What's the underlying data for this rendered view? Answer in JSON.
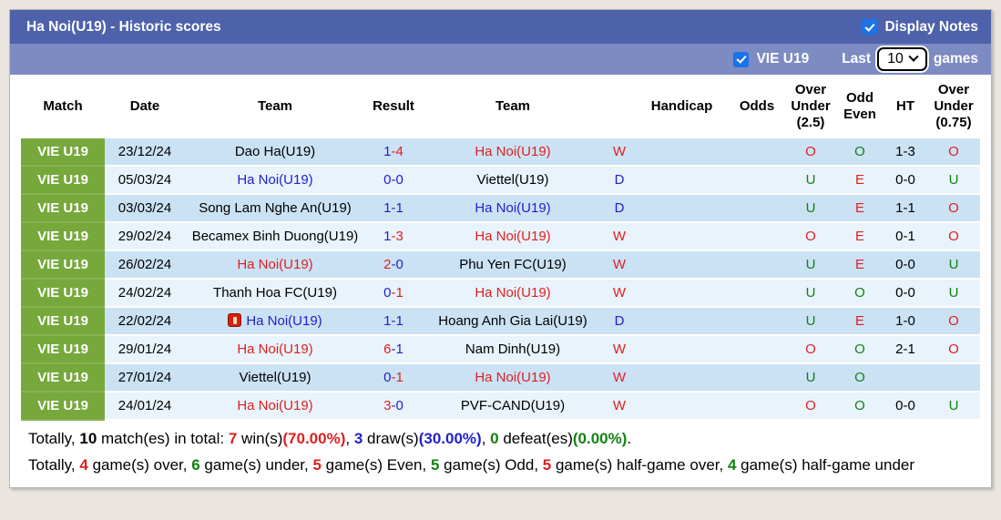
{
  "title_bar": {
    "title": "Ha Noi(U19) - Historic scores",
    "display_notes_label": "Display Notes",
    "display_notes_checked": true
  },
  "filter_bar": {
    "league_label": "VIE U19",
    "league_checked": true,
    "last_label": "Last",
    "games_count": "10",
    "games_label": "games"
  },
  "table": {
    "headers": {
      "match": "Match",
      "date": "Date",
      "team_home": "Team",
      "result": "Result",
      "team_away": "Team",
      "outcome": "",
      "handicap": "Handicap",
      "odds": "Odds",
      "over_under_25": "Over Under (2.5)",
      "odd_even": "Odd Even",
      "ht": "HT",
      "over_under_075": "Over Under (0.75)"
    },
    "rows": [
      {
        "match": "VIE U19",
        "date": "23/12/24",
        "note_icon": false,
        "home": {
          "name": "Dao Ha(U19)",
          "color": "black"
        },
        "result": {
          "home": "1",
          "dash": "-",
          "away": "4",
          "home_color": "blue",
          "away_color": "red"
        },
        "away": {
          "name": "Ha Noi(U19)",
          "color": "red"
        },
        "outcome": {
          "text": "W",
          "color": "red"
        },
        "handicap": "",
        "odds": "",
        "ou25": {
          "text": "O",
          "color": "red"
        },
        "oe": {
          "text": "O",
          "color": "green"
        },
        "ht": "1-3",
        "ou075": {
          "text": "O",
          "color": "red"
        }
      },
      {
        "match": "VIE U19",
        "date": "05/03/24",
        "note_icon": false,
        "home": {
          "name": "Ha Noi(U19)",
          "color": "blue"
        },
        "result": {
          "home": "0",
          "dash": "-",
          "away": "0",
          "home_color": "blue",
          "away_color": "blue"
        },
        "away": {
          "name": "Viettel(U19)",
          "color": "black"
        },
        "outcome": {
          "text": "D",
          "color": "blue"
        },
        "handicap": "",
        "odds": "",
        "ou25": {
          "text": "U",
          "color": "green"
        },
        "oe": {
          "text": "E",
          "color": "red"
        },
        "ht": "0-0",
        "ou075": {
          "text": "U",
          "color": "green"
        }
      },
      {
        "match": "VIE U19",
        "date": "03/03/24",
        "note_icon": false,
        "home": {
          "name": "Song Lam Nghe An(U19)",
          "color": "black"
        },
        "result": {
          "home": "1",
          "dash": "-",
          "away": "1",
          "home_color": "blue",
          "away_color": "blue"
        },
        "away": {
          "name": "Ha Noi(U19)",
          "color": "blue"
        },
        "outcome": {
          "text": "D",
          "color": "blue"
        },
        "handicap": "",
        "odds": "",
        "ou25": {
          "text": "U",
          "color": "green"
        },
        "oe": {
          "text": "E",
          "color": "red"
        },
        "ht": "1-1",
        "ou075": {
          "text": "O",
          "color": "red"
        }
      },
      {
        "match": "VIE U19",
        "date": "29/02/24",
        "note_icon": false,
        "home": {
          "name": "Becamex Binh Duong(U19)",
          "color": "black"
        },
        "result": {
          "home": "1",
          "dash": "-",
          "away": "3",
          "home_color": "blue",
          "away_color": "red"
        },
        "away": {
          "name": "Ha Noi(U19)",
          "color": "red"
        },
        "outcome": {
          "text": "W",
          "color": "red"
        },
        "handicap": "",
        "odds": "",
        "ou25": {
          "text": "O",
          "color": "red"
        },
        "oe": {
          "text": "E",
          "color": "red"
        },
        "ht": "0-1",
        "ou075": {
          "text": "O",
          "color": "red"
        }
      },
      {
        "match": "VIE U19",
        "date": "26/02/24",
        "note_icon": false,
        "home": {
          "name": "Ha Noi(U19)",
          "color": "red"
        },
        "result": {
          "home": "2",
          "dash": "-",
          "away": "0",
          "home_color": "red",
          "away_color": "blue"
        },
        "away": {
          "name": "Phu Yen FC(U19)",
          "color": "black"
        },
        "outcome": {
          "text": "W",
          "color": "red"
        },
        "handicap": "",
        "odds": "",
        "ou25": {
          "text": "U",
          "color": "green"
        },
        "oe": {
          "text": "E",
          "color": "red"
        },
        "ht": "0-0",
        "ou075": {
          "text": "U",
          "color": "green"
        }
      },
      {
        "match": "VIE U19",
        "date": "24/02/24",
        "note_icon": false,
        "home": {
          "name": "Thanh Hoa FC(U19)",
          "color": "black"
        },
        "result": {
          "home": "0",
          "dash": "-",
          "away": "1",
          "home_color": "blue",
          "away_color": "red"
        },
        "away": {
          "name": "Ha Noi(U19)",
          "color": "red"
        },
        "outcome": {
          "text": "W",
          "color": "red"
        },
        "handicap": "",
        "odds": "",
        "ou25": {
          "text": "U",
          "color": "green"
        },
        "oe": {
          "text": "O",
          "color": "green"
        },
        "ht": "0-0",
        "ou075": {
          "text": "U",
          "color": "green"
        }
      },
      {
        "match": "VIE U19",
        "date": "22/02/24",
        "note_icon": true,
        "home": {
          "name": "Ha Noi(U19)",
          "color": "blue"
        },
        "result": {
          "home": "1",
          "dash": "-",
          "away": "1",
          "home_color": "blue",
          "away_color": "blue"
        },
        "away": {
          "name": "Hoang Anh Gia Lai(U19)",
          "color": "black"
        },
        "outcome": {
          "text": "D",
          "color": "blue"
        },
        "handicap": "",
        "odds": "",
        "ou25": {
          "text": "U",
          "color": "green"
        },
        "oe": {
          "text": "E",
          "color": "red"
        },
        "ht": "1-0",
        "ou075": {
          "text": "O",
          "color": "red"
        }
      },
      {
        "match": "VIE U19",
        "date": "29/01/24",
        "note_icon": false,
        "home": {
          "name": "Ha Noi(U19)",
          "color": "red"
        },
        "result": {
          "home": "6",
          "dash": "-",
          "away": "1",
          "home_color": "red",
          "away_color": "blue"
        },
        "away": {
          "name": "Nam Dinh(U19)",
          "color": "black"
        },
        "outcome": {
          "text": "W",
          "color": "red"
        },
        "handicap": "",
        "odds": "",
        "ou25": {
          "text": "O",
          "color": "red"
        },
        "oe": {
          "text": "O",
          "color": "green"
        },
        "ht": "2-1",
        "ou075": {
          "text": "O",
          "color": "red"
        }
      },
      {
        "match": "VIE U19",
        "date": "27/01/24",
        "note_icon": false,
        "home": {
          "name": "Viettel(U19)",
          "color": "black"
        },
        "result": {
          "home": "0",
          "dash": "-",
          "away": "1",
          "home_color": "blue",
          "away_color": "red"
        },
        "away": {
          "name": "Ha Noi(U19)",
          "color": "red"
        },
        "outcome": {
          "text": "W",
          "color": "red"
        },
        "handicap": "",
        "odds": "",
        "ou25": {
          "text": "U",
          "color": "green"
        },
        "oe": {
          "text": "O",
          "color": "green"
        },
        "ht": "",
        "ou075": {
          "text": "",
          "color": "black"
        }
      },
      {
        "match": "VIE U19",
        "date": "24/01/24",
        "note_icon": false,
        "home": {
          "name": "Ha Noi(U19)",
          "color": "red"
        },
        "result": {
          "home": "3",
          "dash": "-",
          "away": "0",
          "home_color": "red",
          "away_color": "blue"
        },
        "away": {
          "name": "PVF-CAND(U19)",
          "color": "black"
        },
        "outcome": {
          "text": "W",
          "color": "red"
        },
        "handicap": "",
        "odds": "",
        "ou25": {
          "text": "O",
          "color": "red"
        },
        "oe": {
          "text": "O",
          "color": "green"
        },
        "ht": "0-0",
        "ou075": {
          "text": "U",
          "color": "green"
        }
      }
    ]
  },
  "summary": {
    "lines": [
      [
        {
          "t": "Totally, ",
          "c": "black"
        },
        {
          "t": "10",
          "c": "black",
          "b": true
        },
        {
          "t": " match(es) in total: ",
          "c": "black"
        },
        {
          "t": "7",
          "c": "red",
          "b": true
        },
        {
          "t": " win(s)",
          "c": "black"
        },
        {
          "t": "(70.00%)",
          "c": "red",
          "b": true
        },
        {
          "t": ", ",
          "c": "black"
        },
        {
          "t": "3",
          "c": "blue",
          "b": true
        },
        {
          "t": " draw(s)",
          "c": "black"
        },
        {
          "t": "(30.00%)",
          "c": "blue",
          "b": true
        },
        {
          "t": ", ",
          "c": "black"
        },
        {
          "t": "0",
          "c": "green",
          "b": true
        },
        {
          "t": " defeat(es)",
          "c": "black"
        },
        {
          "t": "(0.00%)",
          "c": "green",
          "b": true
        },
        {
          "t": ".",
          "c": "black"
        }
      ],
      [
        {
          "t": "Totally, ",
          "c": "black"
        },
        {
          "t": "4",
          "c": "red",
          "b": true
        },
        {
          "t": " game(s) over, ",
          "c": "black"
        },
        {
          "t": "6",
          "c": "green",
          "b": true
        },
        {
          "t": " game(s) under, ",
          "c": "black"
        },
        {
          "t": "5",
          "c": "red",
          "b": true
        },
        {
          "t": " game(s) Even, ",
          "c": "black"
        },
        {
          "t": "5",
          "c": "green",
          "b": true
        },
        {
          "t": " game(s) Odd, ",
          "c": "black"
        },
        {
          "t": "5",
          "c": "red",
          "b": true
        },
        {
          "t": " game(s) half-game over, ",
          "c": "black"
        },
        {
          "t": "4",
          "c": "green",
          "b": true
        },
        {
          "t": " game(s) half-game under",
          "c": "black"
        }
      ]
    ]
  },
  "colors": {
    "red": "#e01f1f",
    "blue": "#2121cd",
    "green": "#118211",
    "black": "#000000",
    "title_bar_bg": "#4e62ab",
    "filter_bar_bg": "#7d8bc3",
    "badge_green": "#76a83c",
    "row_odd_bg": "#cbe2f4",
    "row_even_bg": "#e8f3fb",
    "checkbox_blue": "#1a73e8",
    "note_icon_red": "#d32011"
  }
}
